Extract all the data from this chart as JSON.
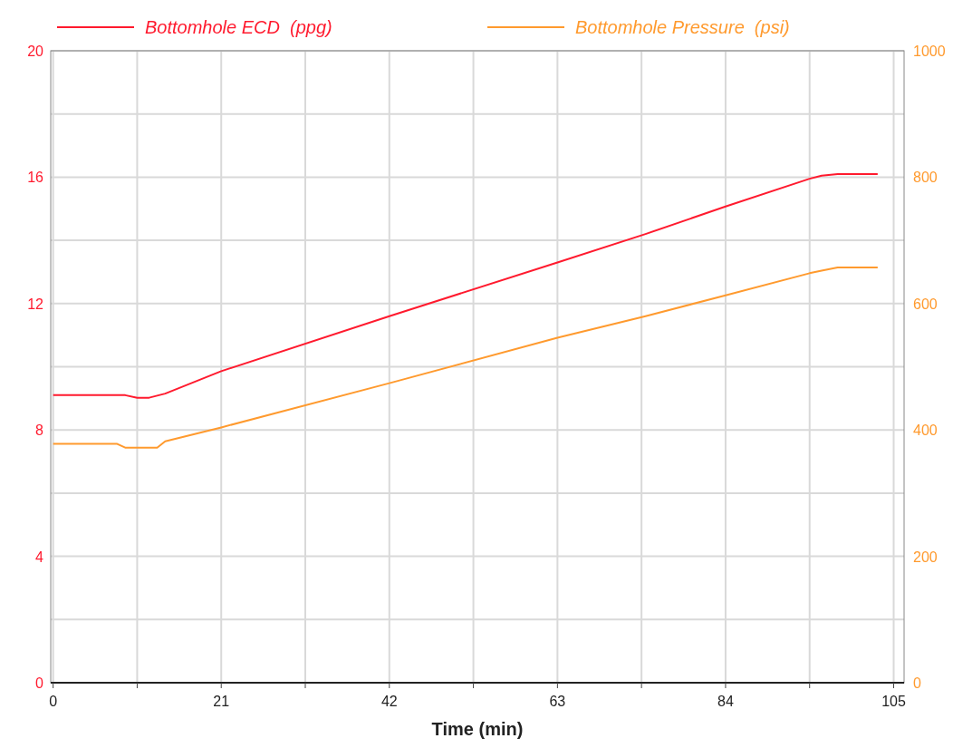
{
  "chart_data": {
    "type": "line",
    "xlabel": "Time (min)",
    "xlim": [
      -0.3,
      106.3
    ],
    "xticks": [
      0,
      {
        "value": 10.5,
        "label": null
      },
      21,
      {
        "value": 31.5,
        "label": null
      },
      42,
      {
        "value": 52.5,
        "label": null
      },
      63,
      {
        "value": 73.5,
        "label": null
      },
      84,
      {
        "value": 94.5,
        "label": null
      },
      105
    ],
    "ylim": [
      0,
      20
    ],
    "yticks": [
      0,
      {
        "value": 2,
        "label": null
      },
      4,
      {
        "value": 6,
        "label": null
      },
      8,
      {
        "value": 10,
        "label": null
      },
      12,
      {
        "value": 14,
        "label": null
      },
      16,
      {
        "value": 18,
        "label": null
      },
      20
    ],
    "y2lim": [
      0,
      1000
    ],
    "y2ticks": [
      0,
      200,
      400,
      600,
      800,
      1000
    ],
    "grid": true,
    "legend": "top",
    "line_style": "solid",
    "marker": "none",
    "series": [
      {
        "name": "Bottomhole ECD  (ppg)",
        "color": "#ff1a2e",
        "x": [
          0,
          9,
          10.5,
          12,
          14,
          21,
          42,
          63,
          74,
          84,
          94.5,
          96,
          98,
          103
        ],
        "values": [
          9.1,
          9.1,
          9.02,
          9.02,
          9.15,
          9.86,
          11.6,
          13.3,
          14.2,
          15.07,
          15.95,
          16.05,
          16.1,
          16.1
        ]
      },
      {
        "name": "Bottomhole Pressure  (psi)",
        "color": "#ff9a2e",
        "axis": "y2",
        "x": [
          0,
          8,
          9,
          13,
          14,
          21,
          42,
          63,
          74,
          84,
          94.5,
          96,
          98,
          103
        ],
        "values": [
          378,
          378,
          372,
          372,
          382,
          404,
          474,
          546,
          580,
          613,
          648,
          652,
          657,
          657
        ]
      }
    ]
  }
}
